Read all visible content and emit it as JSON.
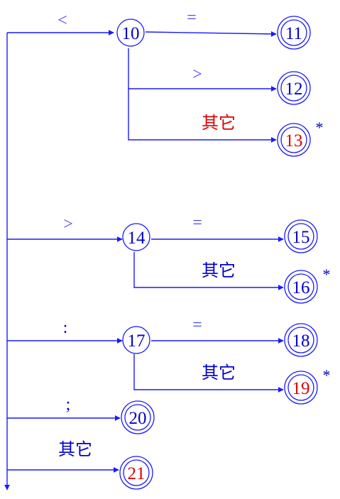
{
  "colors": {
    "line": "#1a1aff",
    "text": "#0000cc",
    "label": "#4a4aff",
    "red": "#e00000",
    "background": "#ffffff"
  },
  "states": [
    {
      "id": "10",
      "label": "10",
      "accepting": false,
      "label_color": "text"
    },
    {
      "id": "11",
      "label": "11",
      "accepting": true,
      "label_color": "text"
    },
    {
      "id": "12",
      "label": "12",
      "accepting": true,
      "label_color": "text"
    },
    {
      "id": "13",
      "label": "13",
      "accepting": true,
      "label_color": "red",
      "star": "*"
    },
    {
      "id": "14",
      "label": "14",
      "accepting": false,
      "label_color": "text"
    },
    {
      "id": "15",
      "label": "15",
      "accepting": true,
      "label_color": "text"
    },
    {
      "id": "16",
      "label": "16",
      "accepting": true,
      "label_color": "text",
      "star": "*"
    },
    {
      "id": "17",
      "label": "17",
      "accepting": false,
      "label_color": "text"
    },
    {
      "id": "18",
      "label": "18",
      "accepting": true,
      "label_color": "text"
    },
    {
      "id": "19",
      "label": "19",
      "accepting": true,
      "label_color": "red",
      "star": "*"
    },
    {
      "id": "20",
      "label": "20",
      "accepting": true,
      "label_color": "text"
    },
    {
      "id": "21",
      "label": "21",
      "accepting": true,
      "label_color": "red"
    }
  ],
  "edges": [
    {
      "from": "start",
      "to": "10",
      "label": "<",
      "label_color": "label"
    },
    {
      "from": "10",
      "to": "11",
      "label": "=",
      "label_color": "label"
    },
    {
      "from": "10",
      "to": "12",
      "label": ">",
      "label_color": "label"
    },
    {
      "from": "10",
      "to": "13",
      "label": "其它",
      "label_color": "red"
    },
    {
      "from": "start",
      "to": "14",
      "label": ">",
      "label_color": "label"
    },
    {
      "from": "14",
      "to": "15",
      "label": "=",
      "label_color": "label"
    },
    {
      "from": "14",
      "to": "16",
      "label": "其它",
      "label_color": "text"
    },
    {
      "from": "start",
      "to": "17",
      "label": ":",
      "label_color": "text"
    },
    {
      "from": "17",
      "to": "18",
      "label": "=",
      "label_color": "label"
    },
    {
      "from": "17",
      "to": "19",
      "label": "其它",
      "label_color": "text"
    },
    {
      "from": "start",
      "to": "20",
      "label": ";",
      "label_color": "text"
    },
    {
      "from": "start",
      "to": "21",
      "label": "其它",
      "label_color": "text"
    }
  ]
}
